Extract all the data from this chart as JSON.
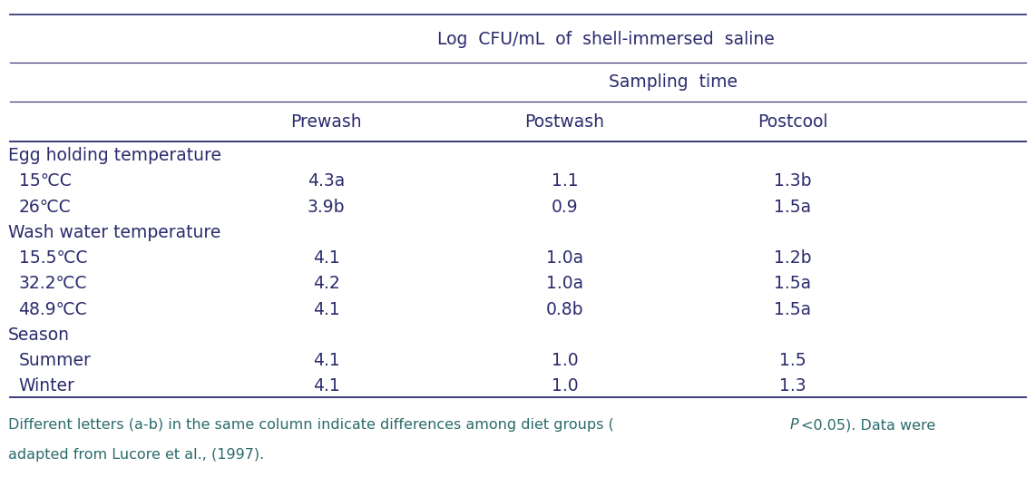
{
  "title_main": "Log  CFU/mL  of  shell-immersed  saline",
  "title_sub": "Sampling  time",
  "col_headers": [
    "Prewash",
    "Postwash",
    "Postcool"
  ],
  "sections": [
    {
      "header": "Egg holding temperature",
      "rows": [
        {
          "label": "15℃C",
          "values": [
            "4.3a",
            "1.1",
            "1.3b"
          ]
        },
        {
          "label": "26℃C",
          "values": [
            "3.9b",
            "0.9",
            "1.5a"
          ]
        }
      ]
    },
    {
      "header": "Wash water temperature",
      "rows": [
        {
          "label": "15.5℃C",
          "values": [
            "4.1",
            "1.0a",
            "1.2b"
          ]
        },
        {
          "label": "32.2℃C",
          "values": [
            "4.2",
            "1.0a",
            "1.5a"
          ]
        },
        {
          "label": "48.9℃C",
          "values": [
            "4.1",
            "0.8b",
            "1.5a"
          ]
        }
      ]
    },
    {
      "header": "Season",
      "rows": [
        {
          "label": "Summer",
          "values": [
            "4.1",
            "1.0",
            "1.5"
          ]
        },
        {
          "label": "Winter",
          "values": [
            "4.1",
            "1.0",
            "1.3"
          ]
        }
      ]
    }
  ],
  "footnote_pre": "Different letters (a-b) in the same column indicate differences among diet groups (",
  "footnote_P": "P",
  "footnote_post": "<0.05). Data were",
  "footnote_line2": "adapted from Lucore et al., (1997).",
  "bg_color": "#ffffff",
  "text_color": "#2b2b6e",
  "line_color": "#2b2b6e",
  "footnote_color": "#2b6b6b",
  "font_size": 13.5,
  "footnote_font_size": 11.5
}
